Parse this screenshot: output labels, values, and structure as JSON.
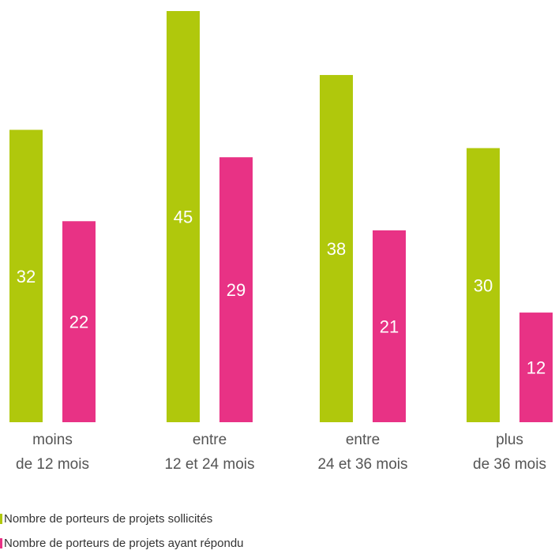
{
  "chart_data": {
    "type": "bar",
    "categories": [
      [
        "moins",
        "de 12 mois"
      ],
      [
        "entre",
        "12 et 24 mois"
      ],
      [
        "entre",
        "24 et 36 mois"
      ],
      [
        "plus",
        "de 36 mois"
      ]
    ],
    "series": [
      {
        "name": "Nombre de porteurs de projets sollicités",
        "color": "#b0c80c",
        "values": [
          32,
          45,
          38,
          30
        ]
      },
      {
        "name": "Nombre de porteurs de projets ayant répondu",
        "color": "#e83285",
        "values": [
          22,
          29,
          21,
          12
        ]
      }
    ],
    "ylim": [
      0,
      45
    ],
    "grid": false,
    "legend_position": "bottom-left"
  }
}
